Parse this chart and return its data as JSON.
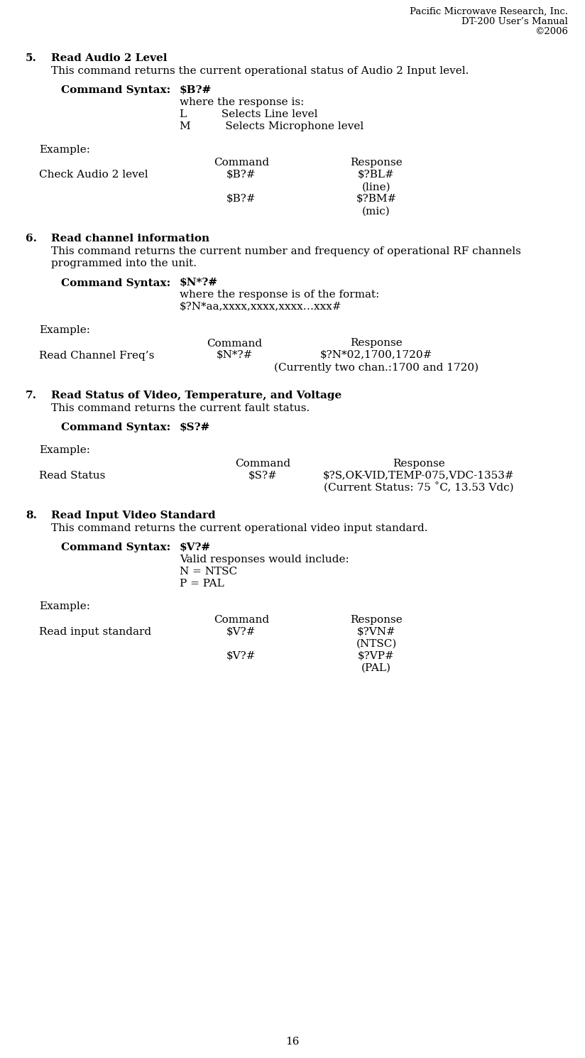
{
  "header_line1": "Pacific Microwave Research, Inc.",
  "header_line2": "DT-200 User’s Manual",
  "header_line3": "©2006",
  "bg_color": "#ffffff",
  "text_color": "#000000",
  "page_number": "16",
  "sections": [
    {
      "number": "5.",
      "title": "Read Audio 2 Level",
      "description": "This command returns the current operational status of Audio 2 Input level.",
      "syntax_label": "Command Syntax:",
      "syntax_value": "$B?#",
      "syntax_details": [
        "where the response is:",
        "L          Selects Line level",
        "M          Selects Microphone level"
      ],
      "example_label": "Example:",
      "example_header_cmd": "Command",
      "example_header_resp": "Response",
      "example_rows": [
        {
          "label": "Check Audio 2 level",
          "command": "$B?#",
          "response": "$?BL#",
          "response2": "(line)"
        },
        {
          "label": "",
          "command": "$B?#",
          "response": "$?BM#",
          "response2": "(mic)"
        }
      ]
    },
    {
      "number": "6.",
      "title": "Read channel information",
      "description": "This command returns the current number and frequency of operational RF channels\nprogrammed into the unit.",
      "syntax_label": "Command Syntax:",
      "syntax_value": "$N*?#",
      "syntax_details": [
        "where the response is of the format:",
        "$?N*aa,xxxx,xxxx,xxxx…xxx#"
      ],
      "example_label": "Example:",
      "example_header_cmd": "Command",
      "example_header_resp": "Response",
      "example_rows": [
        {
          "label": "Read Channel Freq’s",
          "command": "$N*?#",
          "response": "$?N*02,1700,1720#",
          "response2": "(Currently two chan.:1700 and 1720)"
        }
      ]
    },
    {
      "number": "7.",
      "title": "Read Status of Video, Temperature, and Voltage",
      "description": "This command returns the current fault status.",
      "syntax_label": "Command Syntax:",
      "syntax_value": "$S?#",
      "syntax_details": [],
      "example_label": "Example:",
      "example_header_cmd": "Command",
      "example_header_resp": "Response",
      "example_rows": [
        {
          "label": "Read Status",
          "command": "$S?#",
          "response": "$?S,OK-VID,TEMP-075,VDC-1353#",
          "response2": "(Current Status: 75 ˚C, 13.53 Vdc)"
        }
      ]
    },
    {
      "number": "8.",
      "title": "Read Input Video Standard",
      "description": "This command returns the current operational video input standard.",
      "syntax_label": "Command Syntax:",
      "syntax_value": "$V?#",
      "syntax_details": [
        "Valid responses would include:",
        "N = NTSC",
        "P = PAL"
      ],
      "example_label": "Example:",
      "example_header_cmd": "Command",
      "example_header_resp": "Response",
      "example_rows": [
        {
          "label": "Read input standard",
          "command": "$V?#",
          "response": "$?VN#",
          "response2": "(NTSC)"
        },
        {
          "label": "",
          "command": "$V?#",
          "response": "$?VP#",
          "response2": "(PAL)"
        }
      ]
    }
  ]
}
